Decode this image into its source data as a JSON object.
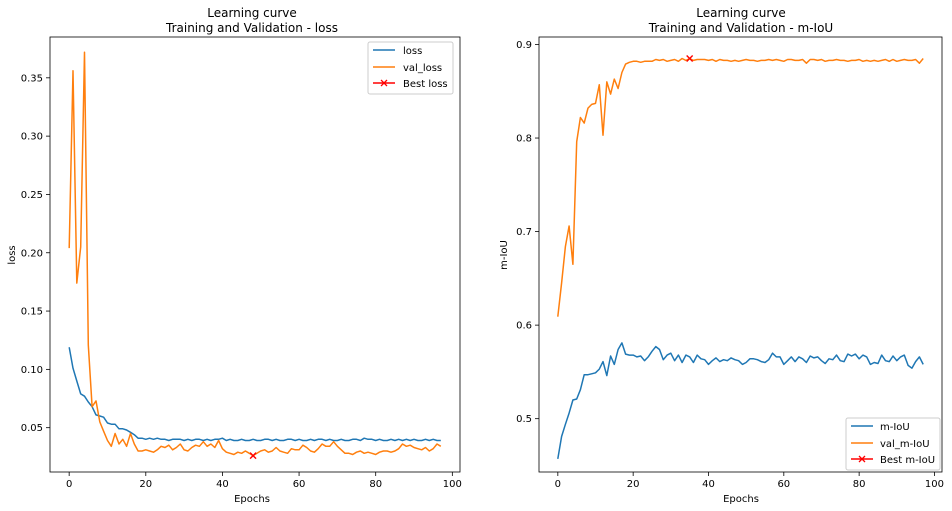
{
  "chart_data": [
    {
      "type": "line",
      "title": "Learning curve",
      "subtitle": "Training and Validation - loss",
      "xlabel": "Epochs",
      "ylabel": "loss",
      "xlim": [
        -5,
        102
      ],
      "ylim": [
        0.012,
        0.385
      ],
      "xticks": [
        0,
        20,
        40,
        60,
        80,
        100
      ],
      "yticks": [
        0.05,
        0.1,
        0.15,
        0.2,
        0.25,
        0.3,
        0.35
      ],
      "ytick_labels": [
        "0.05",
        "0.10",
        "0.15",
        "0.20",
        "0.25",
        "0.30",
        "0.35"
      ],
      "grid": false,
      "legend": "top-right",
      "series": [
        {
          "name": "loss",
          "color": "#1f77b4",
          "x": [
            0,
            1,
            2,
            3,
            4,
            5,
            6,
            7,
            8,
            9,
            10,
            11,
            12,
            13,
            14,
            15,
            16,
            17,
            18,
            19,
            20,
            21,
            22,
            23,
            24,
            25,
            26,
            27,
            28,
            29,
            30,
            31,
            32,
            33,
            34,
            35,
            36,
            37,
            38,
            39,
            40,
            41,
            42,
            43,
            44,
            45,
            46,
            47,
            48,
            49,
            50,
            51,
            52,
            53,
            54,
            55,
            56,
            57,
            58,
            59,
            60,
            61,
            62,
            63,
            64,
            65,
            66,
            67,
            68,
            69,
            70,
            71,
            72,
            73,
            74,
            75,
            76,
            77,
            78,
            79,
            80,
            81,
            82,
            83,
            84,
            85,
            86,
            87,
            88,
            89,
            90,
            91,
            92,
            93,
            94,
            95,
            96,
            97
          ],
          "y": [
            0.119,
            0.101,
            0.09,
            0.079,
            0.077,
            0.072,
            0.068,
            0.061,
            0.06,
            0.059,
            0.054,
            0.053,
            0.053,
            0.049,
            0.049,
            0.048,
            0.046,
            0.044,
            0.041,
            0.041,
            0.04,
            0.041,
            0.04,
            0.041,
            0.04,
            0.04,
            0.039,
            0.04,
            0.04,
            0.04,
            0.039,
            0.04,
            0.039,
            0.04,
            0.04,
            0.039,
            0.04,
            0.039,
            0.04,
            0.04,
            0.041,
            0.039,
            0.04,
            0.039,
            0.039,
            0.04,
            0.039,
            0.039,
            0.04,
            0.039,
            0.039,
            0.04,
            0.04,
            0.039,
            0.04,
            0.039,
            0.039,
            0.04,
            0.04,
            0.039,
            0.04,
            0.039,
            0.039,
            0.04,
            0.039,
            0.04,
            0.04,
            0.039,
            0.04,
            0.039,
            0.039,
            0.04,
            0.039,
            0.039,
            0.04,
            0.04,
            0.039,
            0.041,
            0.04,
            0.04,
            0.039,
            0.04,
            0.039,
            0.039,
            0.04,
            0.039,
            0.04,
            0.039,
            0.04,
            0.039,
            0.04,
            0.039,
            0.039,
            0.04,
            0.039,
            0.04,
            0.039,
            0.039
          ]
        },
        {
          "name": "val_loss",
          "color": "#ff7f0e",
          "x": [
            0,
            1,
            2,
            3,
            4,
            5,
            6,
            7,
            8,
            9,
            10,
            11,
            12,
            13,
            14,
            15,
            16,
            17,
            18,
            19,
            20,
            21,
            22,
            23,
            24,
            25,
            26,
            27,
            28,
            29,
            30,
            31,
            32,
            33,
            34,
            35,
            36,
            37,
            38,
            39,
            40,
            41,
            42,
            43,
            44,
            45,
            46,
            47,
            48,
            49,
            50,
            51,
            52,
            53,
            54,
            55,
            56,
            57,
            58,
            59,
            60,
            61,
            62,
            63,
            64,
            65,
            66,
            67,
            68,
            69,
            70,
            71,
            72,
            73,
            74,
            75,
            76,
            77,
            78,
            79,
            80,
            81,
            82,
            83,
            84,
            85,
            86,
            87,
            88,
            89,
            90,
            91,
            92,
            93,
            94,
            95,
            96,
            97
          ],
          "y": [
            0.204,
            0.356,
            0.174,
            0.205,
            0.372,
            0.121,
            0.068,
            0.073,
            0.055,
            0.047,
            0.039,
            0.034,
            0.045,
            0.036,
            0.04,
            0.034,
            0.045,
            0.036,
            0.03,
            0.03,
            0.031,
            0.03,
            0.029,
            0.031,
            0.034,
            0.033,
            0.035,
            0.031,
            0.033,
            0.036,
            0.031,
            0.03,
            0.033,
            0.035,
            0.034,
            0.038,
            0.034,
            0.036,
            0.033,
            0.039,
            0.032,
            0.029,
            0.028,
            0.027,
            0.029,
            0.028,
            0.03,
            0.028,
            0.026,
            0.028,
            0.03,
            0.031,
            0.029,
            0.03,
            0.033,
            0.03,
            0.029,
            0.028,
            0.032,
            0.031,
            0.031,
            0.035,
            0.033,
            0.03,
            0.029,
            0.032,
            0.036,
            0.034,
            0.034,
            0.038,
            0.034,
            0.031,
            0.028,
            0.028,
            0.027,
            0.029,
            0.03,
            0.028,
            0.029,
            0.028,
            0.027,
            0.029,
            0.03,
            0.03,
            0.029,
            0.03,
            0.032,
            0.036,
            0.034,
            0.035,
            0.033,
            0.032,
            0.031,
            0.033,
            0.03,
            0.032,
            0.036,
            0.034
          ]
        }
      ],
      "best": {
        "name": "Best loss",
        "color": "#ff0000",
        "x": 48,
        "y": 0.026
      }
    },
    {
      "type": "line",
      "title": "Learning curve",
      "subtitle": "Training and Validation - m-IoU",
      "xlabel": "Epochs",
      "ylabel": "m-IoU",
      "xlim": [
        -5,
        102
      ],
      "ylim": [
        0.443,
        0.908
      ],
      "xticks": [
        0,
        20,
        40,
        60,
        80,
        100
      ],
      "yticks": [
        0.5,
        0.6,
        0.7,
        0.8,
        0.9
      ],
      "ytick_labels": [
        "0.5",
        "0.6",
        "0.7",
        "0.8",
        "0.9"
      ],
      "grid": false,
      "legend": "bottom-right",
      "series": [
        {
          "name": "m-IoU",
          "color": "#1f77b4",
          "x": [
            0,
            1,
            2,
            3,
            4,
            5,
            6,
            7,
            8,
            9,
            10,
            11,
            12,
            13,
            14,
            15,
            16,
            17,
            18,
            19,
            20,
            21,
            22,
            23,
            24,
            25,
            26,
            27,
            28,
            29,
            30,
            31,
            32,
            33,
            34,
            35,
            36,
            37,
            38,
            39,
            40,
            41,
            42,
            43,
            44,
            45,
            46,
            47,
            48,
            49,
            50,
            51,
            52,
            53,
            54,
            55,
            56,
            57,
            58,
            59,
            60,
            61,
            62,
            63,
            64,
            65,
            66,
            67,
            68,
            69,
            70,
            71,
            72,
            73,
            74,
            75,
            76,
            77,
            78,
            79,
            80,
            81,
            82,
            83,
            84,
            85,
            86,
            87,
            88,
            89,
            90,
            91,
            92,
            93,
            94,
            95,
            96,
            97
          ],
          "y": [
            0.457,
            0.481,
            0.494,
            0.506,
            0.52,
            0.521,
            0.531,
            0.547,
            0.547,
            0.548,
            0.549,
            0.553,
            0.561,
            0.546,
            0.567,
            0.558,
            0.574,
            0.581,
            0.569,
            0.568,
            0.568,
            0.566,
            0.567,
            0.562,
            0.566,
            0.572,
            0.577,
            0.574,
            0.563,
            0.568,
            0.57,
            0.562,
            0.568,
            0.56,
            0.568,
            0.566,
            0.56,
            0.568,
            0.564,
            0.563,
            0.558,
            0.562,
            0.565,
            0.561,
            0.563,
            0.562,
            0.565,
            0.563,
            0.562,
            0.558,
            0.56,
            0.564,
            0.564,
            0.563,
            0.561,
            0.56,
            0.563,
            0.57,
            0.566,
            0.566,
            0.558,
            0.562,
            0.566,
            0.561,
            0.566,
            0.564,
            0.56,
            0.567,
            0.565,
            0.566,
            0.562,
            0.559,
            0.564,
            0.563,
            0.568,
            0.562,
            0.561,
            0.569,
            0.567,
            0.569,
            0.564,
            0.568,
            0.566,
            0.558,
            0.56,
            0.559,
            0.568,
            0.562,
            0.561,
            0.567,
            0.562,
            0.566,
            0.568,
            0.557,
            0.554,
            0.561,
            0.566,
            0.558
          ]
        },
        {
          "name": "val_m-IoU",
          "color": "#ff7f0e",
          "x": [
            0,
            1,
            2,
            3,
            4,
            5,
            6,
            7,
            8,
            9,
            10,
            11,
            12,
            13,
            14,
            15,
            16,
            17,
            18,
            19,
            20,
            21,
            22,
            23,
            24,
            25,
            26,
            27,
            28,
            29,
            30,
            31,
            32,
            33,
            34,
            35,
            36,
            37,
            38,
            39,
            40,
            41,
            42,
            43,
            44,
            45,
            46,
            47,
            48,
            49,
            50,
            51,
            52,
            53,
            54,
            55,
            56,
            57,
            58,
            59,
            60,
            61,
            62,
            63,
            64,
            65,
            66,
            67,
            68,
            69,
            70,
            71,
            72,
            73,
            74,
            75,
            76,
            77,
            78,
            79,
            80,
            81,
            82,
            83,
            84,
            85,
            86,
            87,
            88,
            89,
            90,
            91,
            92,
            93,
            94,
            95,
            96,
            97
          ],
          "y": [
            0.609,
            0.645,
            0.684,
            0.706,
            0.665,
            0.796,
            0.822,
            0.816,
            0.832,
            0.836,
            0.837,
            0.857,
            0.803,
            0.86,
            0.847,
            0.863,
            0.853,
            0.87,
            0.879,
            0.881,
            0.882,
            0.882,
            0.881,
            0.882,
            0.882,
            0.882,
            0.884,
            0.883,
            0.884,
            0.882,
            0.883,
            0.884,
            0.882,
            0.885,
            0.883,
            0.885,
            0.883,
            0.884,
            0.884,
            0.884,
            0.883,
            0.884,
            0.882,
            0.884,
            0.883,
            0.883,
            0.882,
            0.883,
            0.882,
            0.883,
            0.884,
            0.883,
            0.883,
            0.882,
            0.883,
            0.883,
            0.884,
            0.883,
            0.884,
            0.883,
            0.882,
            0.884,
            0.884,
            0.883,
            0.883,
            0.884,
            0.88,
            0.884,
            0.884,
            0.883,
            0.884,
            0.882,
            0.883,
            0.883,
            0.884,
            0.883,
            0.883,
            0.882,
            0.883,
            0.883,
            0.884,
            0.882,
            0.883,
            0.882,
            0.883,
            0.882,
            0.883,
            0.884,
            0.882,
            0.884,
            0.882,
            0.883,
            0.884,
            0.883,
            0.883,
            0.884,
            0.88,
            0.885
          ]
        }
      ],
      "best": {
        "name": "Best m-IoU",
        "color": "#ff0000",
        "x": 35,
        "y": 0.885
      }
    }
  ]
}
